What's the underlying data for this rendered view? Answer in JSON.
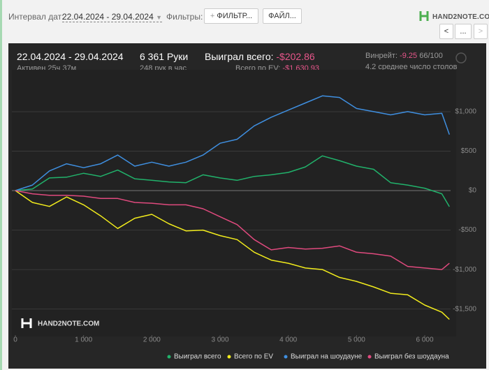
{
  "toolbar": {
    "date_label": "Интервал дат:",
    "date_range": "22.04.2024 - 29.04.2024",
    "filters_label": "Фильтры:",
    "filter_button": "ФИЛЬТР...",
    "file_button": "ФАЙЛ...",
    "logo": "HAND2NOTE.COM"
  },
  "stats": {
    "period": "22.04.2024 - 29.04.2024",
    "active": "Активен 25ч 37м",
    "hands": "6 361 Руки",
    "hands_per_hour": "248 рук в час",
    "won_label": "Выиграл всего:",
    "won_value": "-$202.86",
    "ev_label": "Всего по EV:",
    "ev_value": "-$1,630.93",
    "winrate_label": "Винрейт:",
    "winrate_value": "-9.25",
    "winrate_unit": "66/100",
    "tables": "4.2 среднее число столов"
  },
  "chart_data": {
    "type": "line",
    "watermark": "HAND2NOTE.COM",
    "grid": true,
    "xlim": [
      0,
      6450
    ],
    "ylim": [
      -1830,
      1530
    ],
    "xticks": [
      0,
      {
        "value": 1000,
        "label": "1 000"
      },
      {
        "value": 2000,
        "label": "2 000"
      },
      {
        "value": 3000,
        "label": "3 000"
      },
      {
        "value": 4000,
        "label": "4 000"
      },
      {
        "value": 5000,
        "label": "5 000"
      },
      {
        "value": 6000,
        "label": "6 000"
      }
    ],
    "yticks": [
      {
        "value": 1000,
        "label": "$1,000"
      },
      {
        "value": 500,
        "label": "$500"
      },
      {
        "value": 0,
        "label": "$0"
      },
      {
        "value": -500,
        "label": "-$500"
      },
      {
        "value": -1000,
        "label": "-$1,000"
      },
      {
        "value": -1500,
        "label": "-$1,500"
      }
    ],
    "x": [
      0,
      250,
      500,
      750,
      1000,
      1250,
      1500,
      1750,
      2000,
      2250,
      2500,
      2750,
      3000,
      3250,
      3500,
      3750,
      4000,
      4250,
      4500,
      4750,
      5000,
      5250,
      5500,
      5750,
      6000,
      6250,
      6361
    ],
    "series": [
      {
        "name": "Выиграл всего",
        "color": "#21b26b",
        "values": [
          0,
          20,
          160,
          170,
          220,
          180,
          260,
          150,
          130,
          110,
          100,
          200,
          160,
          130,
          180,
          200,
          230,
          300,
          440,
          380,
          310,
          270,
          100,
          70,
          30,
          -40,
          -202.86
        ]
      },
      {
        "name": "Всего по EV",
        "color": "#f2ec1c",
        "values": [
          0,
          -150,
          -200,
          -80,
          -180,
          -320,
          -480,
          -350,
          -300,
          -420,
          -510,
          -500,
          -570,
          -620,
          -780,
          -880,
          -920,
          -980,
          -1000,
          -1100,
          -1150,
          -1220,
          -1300,
          -1320,
          -1450,
          -1540,
          -1630.93
        ]
      },
      {
        "name": "Выиграл на шоудауне",
        "color": "#3f8fe0",
        "values": [
          0,
          70,
          250,
          340,
          290,
          340,
          450,
          310,
          360,
          310,
          360,
          450,
          600,
          650,
          820,
          930,
          1020,
          1110,
          1200,
          1180,
          1040,
          1000,
          960,
          1000,
          960,
          980,
          710
        ]
      },
      {
        "name": "Выиграл без шоудауна",
        "color": "#e04a7e",
        "values": [
          0,
          -40,
          -60,
          -60,
          -70,
          -100,
          -100,
          -150,
          -160,
          -180,
          -180,
          -230,
          -330,
          -430,
          -620,
          -750,
          -720,
          -740,
          -730,
          -700,
          -780,
          -800,
          -830,
          -960,
          -980,
          -1000,
          -920
        ]
      }
    ]
  }
}
